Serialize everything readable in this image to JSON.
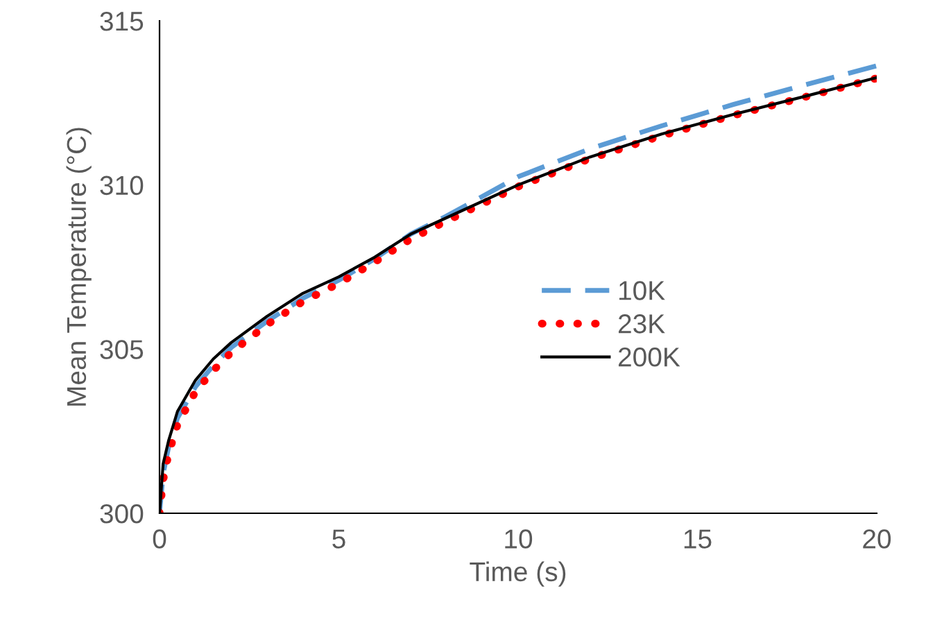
{
  "chart_data": {
    "type": "line",
    "xlabel": "Time (s)",
    "ylabel": "Mean Temperature (°C)",
    "x": [
      0,
      0.1,
      0.25,
      0.5,
      1,
      1.5,
      2,
      3,
      4,
      5,
      6,
      7,
      8,
      10,
      12,
      14,
      16,
      18,
      20
    ],
    "series": [
      {
        "name": "10K",
        "color": "#5b9bd5",
        "line_style": "dashed",
        "values": [
          300,
          301.2,
          302.0,
          302.9,
          303.85,
          304.5,
          305.05,
          305.85,
          306.55,
          307.1,
          307.75,
          308.5,
          309.05,
          310.25,
          311.1,
          311.8,
          312.45,
          313.05,
          313.63
        ]
      },
      {
        "name": "23K",
        "color": "#ff0000",
        "line_style": "dotted",
        "values": [
          300,
          301.0,
          301.8,
          302.7,
          303.7,
          304.35,
          304.9,
          305.75,
          306.45,
          307.0,
          307.65,
          308.35,
          308.9,
          309.95,
          310.8,
          311.5,
          312.12,
          312.68,
          313.25
        ]
      },
      {
        "name": "200K",
        "color": "#000000",
        "line_style": "solid",
        "values": [
          300,
          301.5,
          302.2,
          303.1,
          304.05,
          304.7,
          305.2,
          306.0,
          306.7,
          307.2,
          307.8,
          308.5,
          309.0,
          310.0,
          310.85,
          311.55,
          312.15,
          312.7,
          313.27
        ]
      }
    ],
    "xlim": [
      0,
      20
    ],
    "xticks": [
      0,
      5,
      10,
      15,
      20
    ],
    "ylim": [
      300,
      315
    ],
    "yticks": [
      300,
      305,
      310,
      315
    ],
    "grid": false,
    "legend": "center right"
  }
}
